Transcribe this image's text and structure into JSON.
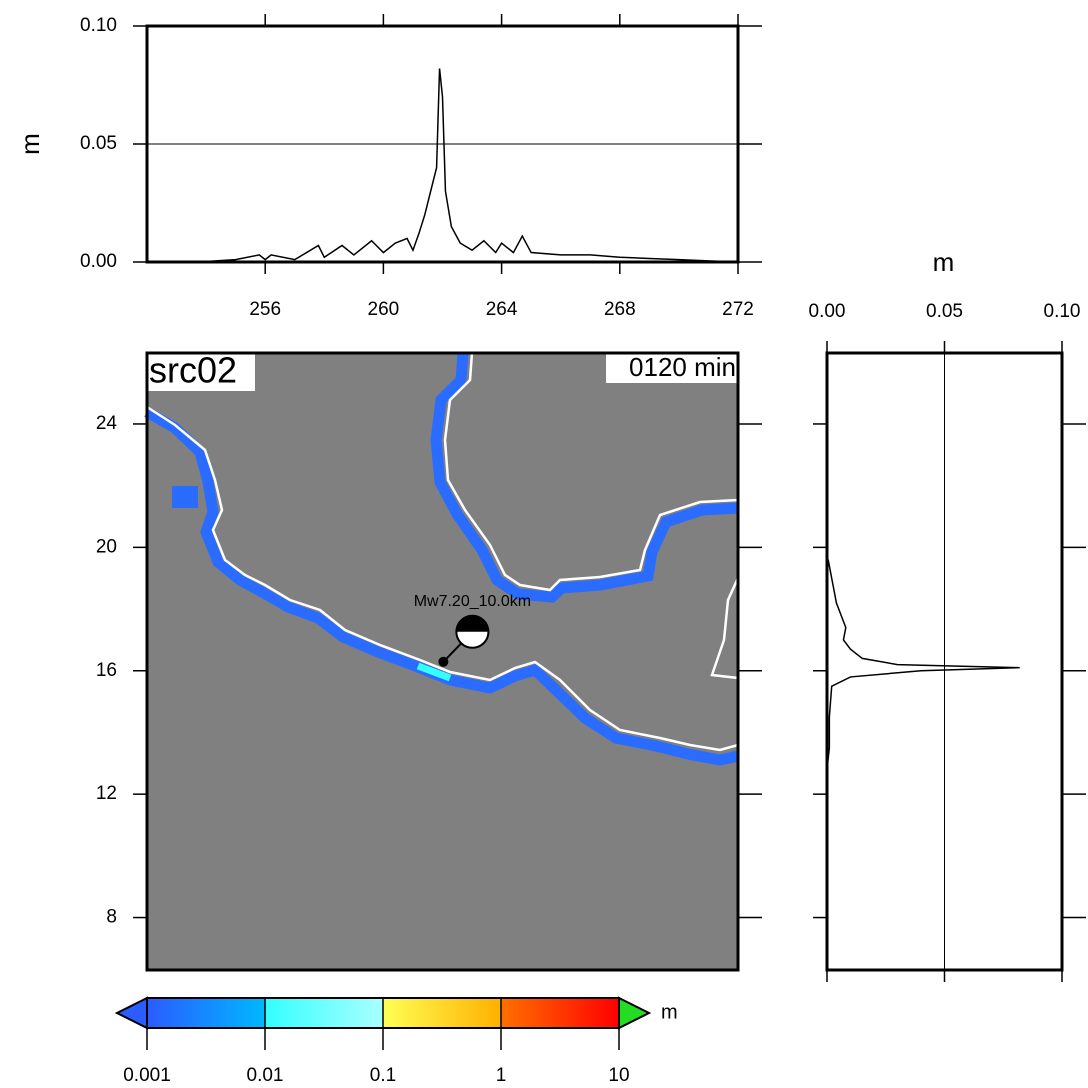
{
  "chart_data": [
    {
      "type": "line",
      "ylabel": "m",
      "xlim": [
        252,
        272
      ],
      "ylim": [
        0,
        0.1
      ],
      "xticks": [
        256,
        260,
        264,
        268,
        272
      ],
      "yticks": [
        {
          "value": 0,
          "label": "0.00"
        },
        {
          "value": 0.05,
          "label": "0.05"
        },
        {
          "value": 0.1,
          "label": "0.10"
        }
      ],
      "grid": true,
      "color": "#000000",
      "x": [
        252,
        253,
        254,
        255,
        255.8,
        256,
        256.2,
        257,
        257.8,
        258,
        258.6,
        259,
        259.6,
        260,
        260.4,
        260.8,
        261,
        261.2,
        261.4,
        261.6,
        261.8,
        261.9,
        262,
        262.1,
        262.3,
        262.6,
        263,
        263.4,
        263.8,
        264,
        264.4,
        264.7,
        265,
        266,
        267,
        268,
        269,
        270,
        271,
        272
      ],
      "values": [
        0,
        0,
        0.0002,
        0.001,
        0.003,
        0.001,
        0.003,
        0.001,
        0.007,
        0.002,
        0.007,
        0.003,
        0.009,
        0.004,
        0.008,
        0.01,
        0.005,
        0.012,
        0.02,
        0.03,
        0.04,
        0.082,
        0.07,
        0.03,
        0.015,
        0.008,
        0.005,
        0.009,
        0.004,
        0.008,
        0.004,
        0.011,
        0.004,
        0.003,
        0.003,
        0.002,
        0.0015,
        0.001,
        0.0005,
        0
      ]
    },
    {
      "type": "map",
      "title": "src02",
      "time_label": "0120 min",
      "xlim": [
        252,
        272
      ],
      "ylim": [
        6.3,
        26.3
      ],
      "yticks": [
        8,
        12,
        16,
        20,
        24
      ],
      "source": {
        "label": "Mw7.20_10.0km",
        "lon": 262.03,
        "lat": 16.29
      }
    },
    {
      "type": "line",
      "xlabel": "m",
      "xlim": [
        0,
        0.1
      ],
      "ylim": [
        6.3,
        26.3
      ],
      "xticks": [
        {
          "value": 0,
          "label": "0.00"
        },
        {
          "value": 0.05,
          "label": "0.05"
        },
        {
          "value": 0.1,
          "label": "0.10"
        }
      ],
      "yticks": [
        8,
        12,
        16,
        20,
        24
      ],
      "grid": true,
      "color": "#000000",
      "y": [
        12.8,
        13.5,
        14.5,
        15.5,
        15.8,
        16.0,
        16.1,
        16.2,
        16.4,
        16.7,
        17,
        17.4,
        17.8,
        18.2,
        18.6,
        19,
        19.6
      ],
      "values": [
        0,
        0.001,
        0.001,
        0.002,
        0.01,
        0.04,
        0.082,
        0.03,
        0.015,
        0.01,
        0.007,
        0.008,
        0.006,
        0.004,
        0.003,
        0.002,
        0.0005
      ]
    },
    {
      "type": "colorbar",
      "unit": "m",
      "log": true,
      "xlim": [
        0.001,
        10
      ],
      "xticks": [
        0.001,
        0.01,
        0.1,
        1,
        10
      ],
      "colors": [
        "#2a5cff",
        "#00b8ff",
        "#33ffff",
        "#aaffff",
        "#ffff55",
        "#ffb000",
        "#ff7000",
        "#ff0000"
      ],
      "under_color": "#2a5cff",
      "over_color": "#22dd22"
    }
  ]
}
